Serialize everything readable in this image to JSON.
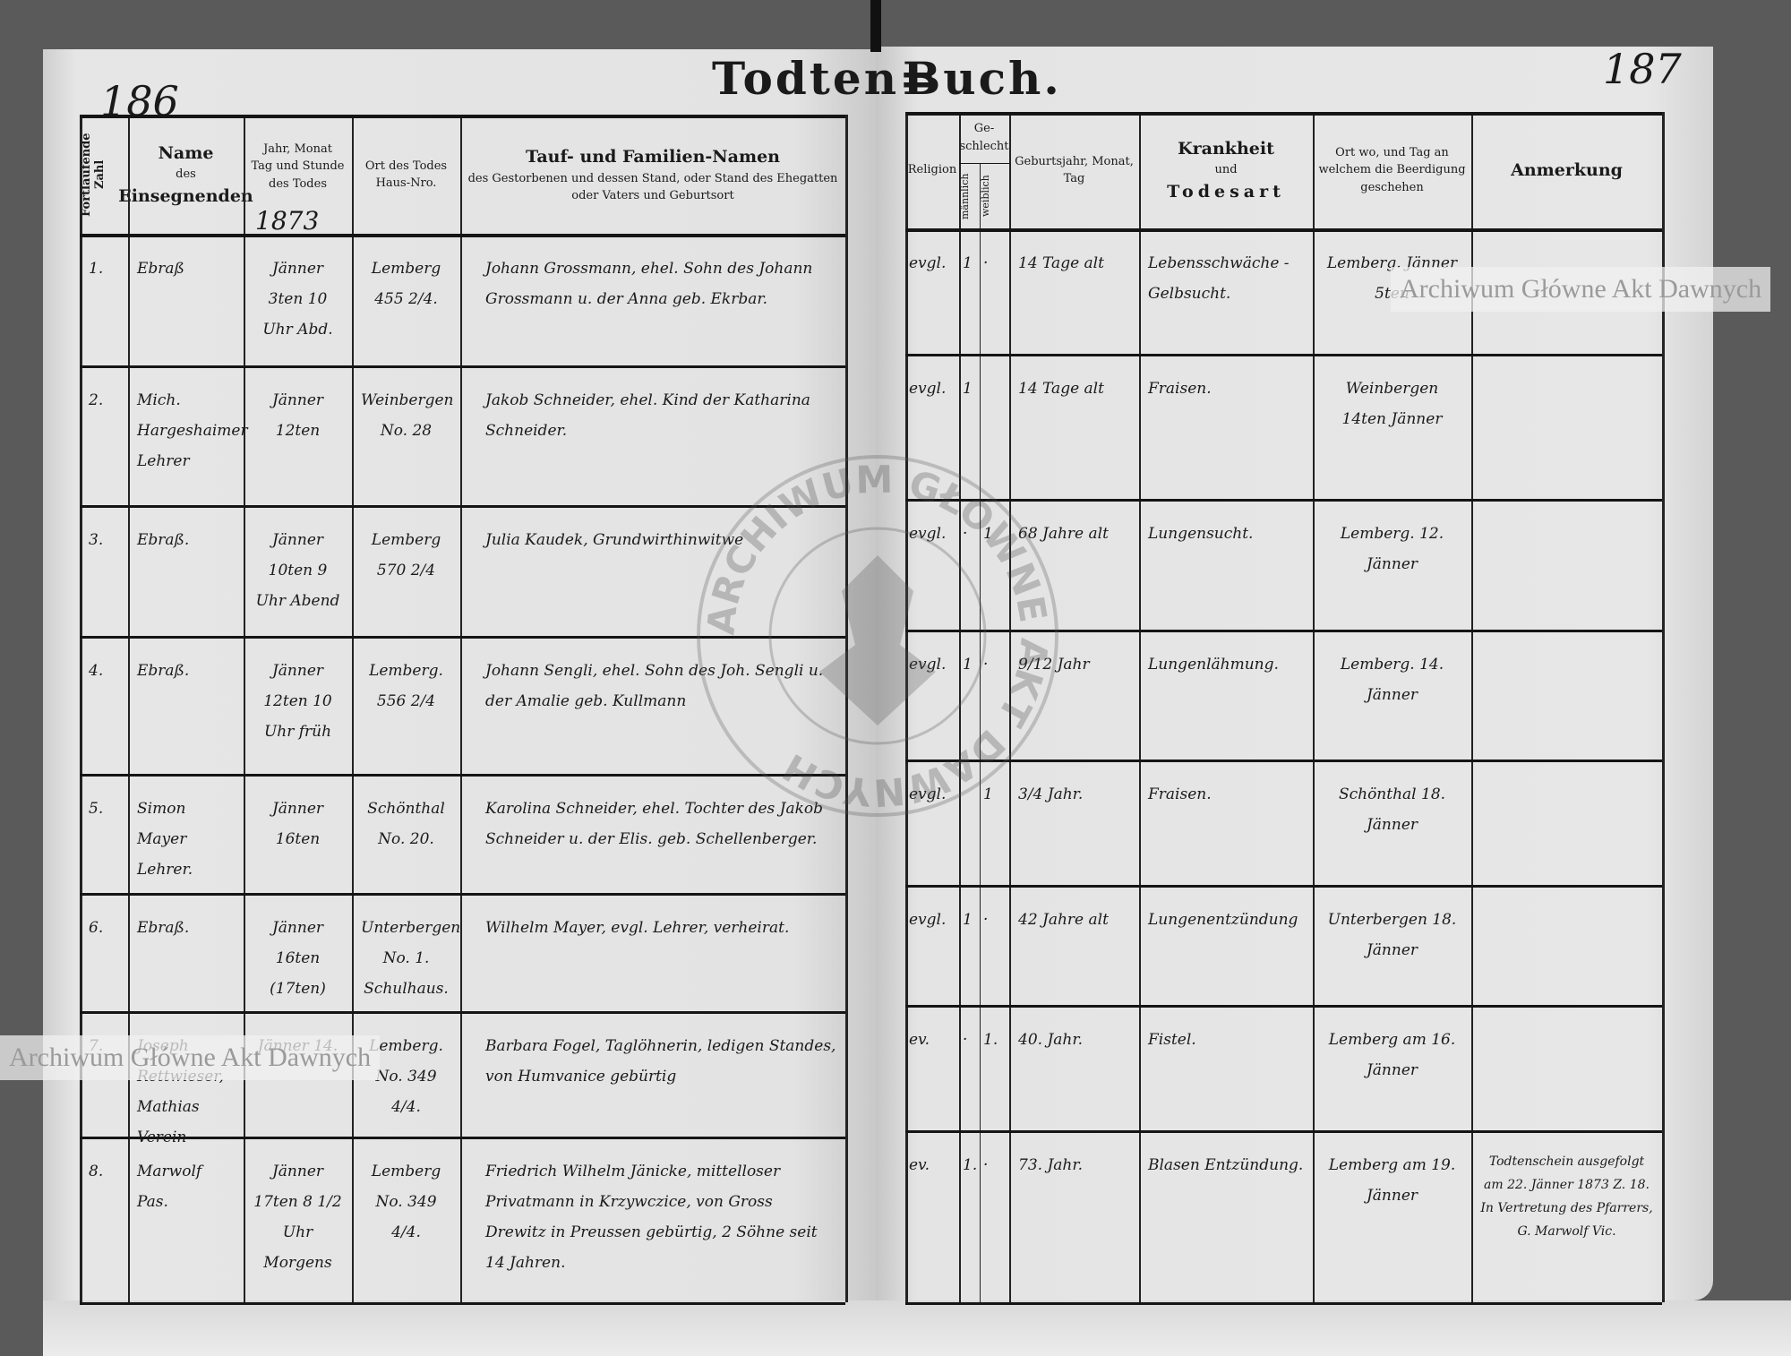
{
  "left_page": {
    "page_number": "186",
    "title": "Todten=",
    "year": "1873",
    "columns": {
      "number": "Fortlaufende Zahl",
      "name_line1": "Name",
      "name_line2": "des",
      "name_line3": "Einsegnenden",
      "date_line1": "Jahr, Monat",
      "date_line2": "Tag und Stunde",
      "date_line3": "des Todes",
      "place_line1": "Ort des Todes",
      "place_line2": "Haus-Nro.",
      "family_line1": "Tauf- und Familien-Namen",
      "family_line2": "des Gestorbenen und dessen Stand, oder Stand des Ehegatten",
      "family_line3": "oder Vaters und Geburtsort"
    }
  },
  "right_page": {
    "page_number": "187",
    "title": "Buch.",
    "columns": {
      "religion": "Religion",
      "sex": "Ge-schlecht",
      "male": "männlich",
      "female": "weiblich",
      "birth_line1": "Geburtsjahr, Monat,",
      "birth_line2": "Tag",
      "disease_line1": "Krankheit",
      "disease_line2": "und",
      "disease_line3": "Todesart",
      "burial_line1": "Ort wo, und Tag an",
      "burial_line2": "welchem die Beerdigung",
      "burial_line3": "geschehen",
      "remark": "Anmerkung"
    }
  },
  "entries": [
    {
      "no": "1.",
      "name": "Ebraß",
      "date": "Jänner 3ten 10 Uhr Abd.",
      "place": "Lemberg 455 2/4.",
      "family": "Johann Grossmann, ehel. Sohn des Johann Grossmann u. der Anna geb. Ekrbar.",
      "religion": "evgl.",
      "male": "1",
      "female": "·",
      "age": "14 Tage alt",
      "disease": "Lebensschwäche - Gelbsucht.",
      "burial": "Lemberg. Jänner 5ten",
      "remark": ""
    },
    {
      "no": "2.",
      "name": "Mich. Hargeshaimer Lehrer",
      "date": "Jänner 12ten",
      "place": "Weinbergen No. 28",
      "family": "Jakob Schneider, ehel. Kind der Katharina Schneider.",
      "religion": "evgl.",
      "male": "1",
      "female": "",
      "age": "14 Tage alt",
      "disease": "Fraisen.",
      "burial": "Weinbergen 14ten Jänner",
      "remark": ""
    },
    {
      "no": "3.",
      "name": "Ebraß.",
      "date": "Jänner 10ten 9 Uhr Abend",
      "place": "Lemberg 570 2/4",
      "family": "Julia Kaudek, Grundwirthinwitwe",
      "religion": "evgl.",
      "male": "·",
      "female": "1",
      "age": "68 Jahre alt",
      "disease": "Lungensucht.",
      "burial": "Lemberg. 12. Jänner",
      "remark": ""
    },
    {
      "no": "4.",
      "name": "Ebraß.",
      "date": "Jänner 12ten 10 Uhr früh",
      "place": "Lemberg. 556 2/4",
      "family": "Johann Sengli, ehel. Sohn des Joh. Sengli u. der Amalie geb. Kullmann",
      "religion": "evgl.",
      "male": "1",
      "female": "·",
      "age": "9/12 Jahr",
      "disease": "Lungenlähmung.",
      "burial": "Lemberg. 14. Jänner",
      "remark": ""
    },
    {
      "no": "5.",
      "name": "Simon Mayer Lehrer.",
      "date": "Jänner 16ten",
      "place": "Schönthal No. 20.",
      "family": "Karolina Schneider, ehel. Tochter des Jakob Schneider u. der Elis. geb. Schellenberger.",
      "religion": "evgl.",
      "male": "",
      "female": "1",
      "age": "3/4 Jahr.",
      "disease": "Fraisen.",
      "burial": "Schönthal 18. Jänner",
      "remark": ""
    },
    {
      "no": "6.",
      "name": "Ebraß.",
      "date": "Jänner 16ten (17ten)",
      "place": "Unterbergen No. 1. Schulhaus.",
      "family": "Wilhelm Mayer, evgl. Lehrer, verheirat.",
      "religion": "evgl.",
      "male": "1",
      "female": "·",
      "age": "42 Jahre alt",
      "disease": "Lungenentzündung",
      "burial": "Unterbergen 18. Jänner",
      "remark": ""
    },
    {
      "no": "7.",
      "name": "Joseph Rettwieser, Mathias Verein",
      "date": "Jänner 14.",
      "place": "Lemberg. No. 349 4/4.",
      "family": "Barbara Fogel, Taglöhnerin, ledigen Standes, von Humvanice gebürtig",
      "religion": "ev.",
      "male": "·",
      "female": "1.",
      "age": "40. Jahr.",
      "disease": "Fistel.",
      "burial": "Lemberg am 16. Jänner",
      "remark": ""
    },
    {
      "no": "8.",
      "name": "Marwolf Pas.",
      "date": "Jänner 17ten 8 1/2 Uhr Morgens",
      "place": "Lemberg No. 349 4/4.",
      "family": "Friedrich Wilhelm Jänicke, mittelloser Privatmann in Krzywczice, von Gross Drewitz in Preussen gebürtig, 2 Söhne seit 14 Jahren.",
      "religion": "ev.",
      "male": "1.",
      "female": "·",
      "age": "73. Jahr.",
      "disease": "Blasen Entzündung.",
      "burial": "Lemberg am 19. Jänner",
      "remark": "Todtenschein ausgefolgt am 22. Jänner 1873 Z. 18. In Vertretung des Pfarrers, G. Marwolf Vic."
    }
  ],
  "watermark": "Archiwum Główne Akt Dawnych",
  "stamp": "ARCHIWUM GŁÓWNE AKT DAWNYCH",
  "colors": {
    "paper": "#e4e4e4",
    "ink": "#1a1a1a",
    "background": "#5a5a5a"
  }
}
